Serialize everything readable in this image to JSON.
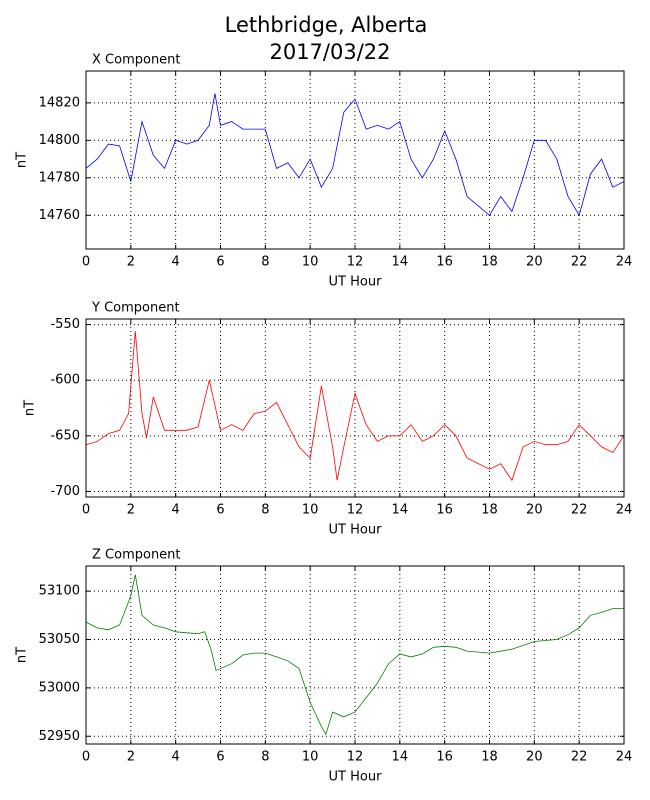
{
  "title": "Lethbridge, Alberta",
  "subtitle": "2017/03/22",
  "chart_data": [
    {
      "type": "line",
      "title": "X Component",
      "xlabel": "UT Hour",
      "ylabel": "nT",
      "xlim": [
        0,
        24
      ],
      "xticks": [
        0,
        2,
        4,
        6,
        8,
        10,
        12,
        14,
        16,
        18,
        20,
        22,
        24
      ],
      "ylim": [
        14742,
        14837
      ],
      "yticks": [
        14760,
        14780,
        14800,
        14820
      ],
      "grid": true,
      "x": [
        0,
        0.5,
        1,
        1.5,
        2,
        2.5,
        3,
        3.5,
        4,
        4.5,
        5,
        5.5,
        5.75,
        6,
        6.5,
        7,
        7.5,
        8,
        8.5,
        9,
        9.5,
        10,
        10.5,
        11,
        11.5,
        12,
        12.5,
        13,
        13.5,
        14,
        14.5,
        15,
        15.5,
        16,
        16.5,
        17,
        17.5,
        18,
        18.5,
        19,
        19.5,
        20,
        20.5,
        21,
        21.5,
        22,
        22.5,
        23,
        23.5,
        24
      ],
      "series": [
        {
          "name": "X",
          "color": "#0000ff",
          "values": [
            14785,
            14790,
            14798,
            14797,
            14778,
            14810,
            14792,
            14785,
            14800,
            14798,
            14800,
            14808,
            14825,
            14808,
            14810,
            14806,
            14806,
            14806,
            14785,
            14788,
            14780,
            14790,
            14775,
            14785,
            14815,
            14822,
            14806,
            14808,
            14806,
            14810,
            14790,
            14780,
            14790,
            14805,
            14790,
            14770,
            14765,
            14760,
            14770,
            14762,
            14780,
            14800,
            14800,
            14790,
            14770,
            14760,
            14782,
            14790,
            14775,
            14778
          ]
        }
      ]
    },
    {
      "type": "line",
      "title": "Y Component",
      "xlabel": "UT Hour",
      "ylabel": "nT",
      "xlim": [
        0,
        24
      ],
      "xticks": [
        0,
        2,
        4,
        6,
        8,
        10,
        12,
        14,
        16,
        18,
        20,
        22,
        24
      ],
      "ylim": [
        -705,
        -545
      ],
      "yticks": [
        -550,
        -600,
        -650,
        -700
      ],
      "grid": true,
      "x": [
        0,
        0.5,
        1,
        1.5,
        1.9,
        2.2,
        2.5,
        2.7,
        3,
        3.5,
        4,
        4.5,
        5,
        5.5,
        6,
        6.5,
        7,
        7.5,
        8,
        8.5,
        9,
        9.5,
        10,
        10.5,
        11,
        11.2,
        11.5,
        12,
        12.5,
        13,
        13.5,
        14,
        14.5,
        15,
        15.5,
        16,
        16.5,
        17,
        17.5,
        18,
        18.5,
        19,
        19.5,
        20,
        20.5,
        21,
        21.5,
        22,
        22.5,
        23,
        23.5,
        24
      ],
      "series": [
        {
          "name": "Y",
          "color": "#ff0000",
          "values": [
            -658,
            -655,
            -648,
            -645,
            -630,
            -556,
            -630,
            -652,
            -615,
            -645,
            -645,
            -645,
            -642,
            -600,
            -645,
            -640,
            -645,
            -630,
            -628,
            -620,
            -640,
            -660,
            -670,
            -605,
            -660,
            -690,
            -660,
            -612,
            -640,
            -655,
            -650,
            -650,
            -640,
            -655,
            -650,
            -640,
            -650,
            -670,
            -675,
            -680,
            -675,
            -690,
            -660,
            -655,
            -658,
            -658,
            -655,
            -640,
            -650,
            -660,
            -665,
            -650
          ]
        }
      ]
    },
    {
      "type": "line",
      "title": "Z Component",
      "xlabel": "UT Hour",
      "ylabel": "nT",
      "xlim": [
        0,
        24
      ],
      "xticks": [
        0,
        2,
        4,
        6,
        8,
        10,
        12,
        14,
        16,
        18,
        20,
        22,
        24
      ],
      "ylim": [
        52942,
        53126
      ],
      "yticks": [
        52950,
        53000,
        53050,
        53100
      ],
      "grid": true,
      "x": [
        0,
        0.5,
        1,
        1.5,
        2,
        2.2,
        2.5,
        3,
        3.5,
        4,
        4.5,
        5,
        5.3,
        5.6,
        5.8,
        6.5,
        7,
        7.5,
        8,
        8.5,
        9,
        9.5,
        10,
        10.5,
        10.7,
        11,
        11.5,
        12,
        12.5,
        13,
        13.5,
        14,
        14.5,
        15,
        15.5,
        16,
        16.5,
        17,
        18,
        19,
        20,
        21,
        21.5,
        22,
        22.5,
        23,
        23.5,
        24
      ],
      "series": [
        {
          "name": "Z",
          "color": "#008000",
          "values": [
            53068,
            53062,
            53060,
            53065,
            53095,
            53117,
            53075,
            53065,
            53062,
            53058,
            53057,
            53056,
            53058,
            53038,
            53018,
            53025,
            53034,
            53036,
            53036,
            53032,
            53028,
            53020,
            52985,
            52960,
            52952,
            52975,
            52970,
            52975,
            52990,
            53005,
            53025,
            53035,
            53032,
            53035,
            53042,
            53043,
            53042,
            53038,
            53036,
            53040,
            53048,
            53050,
            53055,
            53062,
            53075,
            53078,
            53082,
            53082
          ]
        }
      ]
    }
  ]
}
